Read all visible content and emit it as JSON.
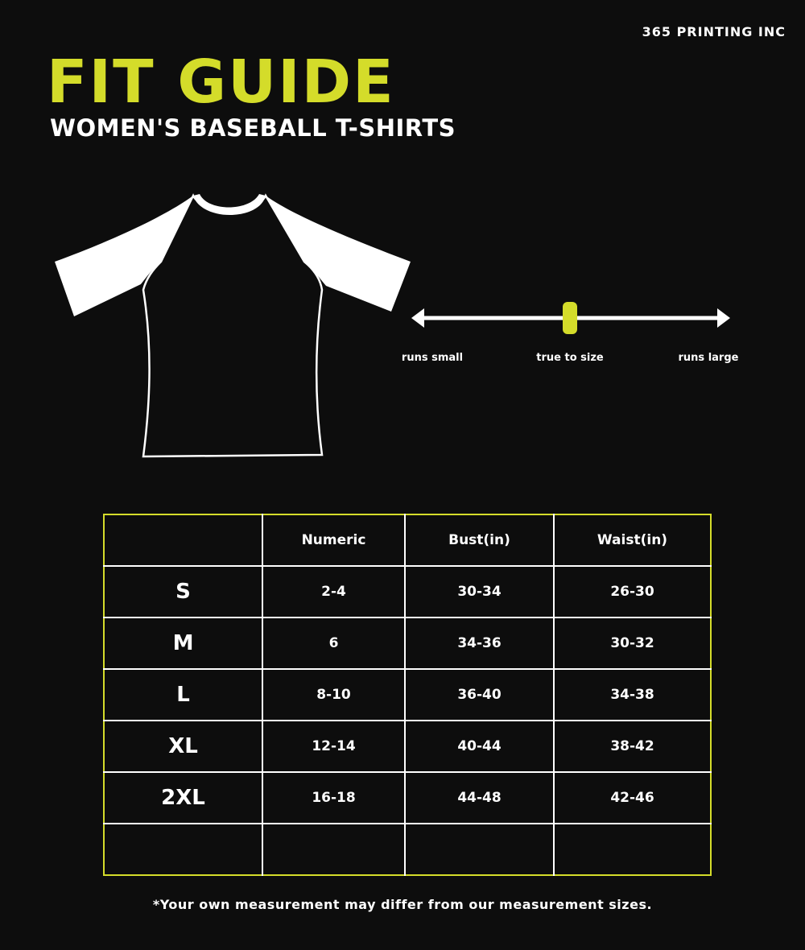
{
  "brand": "365 PRINTING INC",
  "title": "FIT GUIDE",
  "subtitle": "WOMEN'S BASEBALL T-SHIRTS",
  "fit_scale": {
    "labels": [
      "runs small",
      "true to size",
      "runs large"
    ],
    "indicator": "true to size",
    "indicator_position": 0.5,
    "accent": "#d4dc2a"
  },
  "table": {
    "headers": [
      "",
      "Numeric",
      "Bust(in)",
      "Waist(in)"
    ],
    "rows": [
      [
        "S",
        "2-4",
        "30-34",
        "26-30"
      ],
      [
        "M",
        "6",
        "34-36",
        "30-32"
      ],
      [
        "L",
        "8-10",
        "36-40",
        "34-38"
      ],
      [
        "XL",
        "12-14",
        "40-44",
        "38-42"
      ],
      [
        "2XL",
        "16-18",
        "44-48",
        "42-46"
      ],
      [
        "",
        "",
        "",
        ""
      ]
    ]
  },
  "footnote": "*Your own measurement may differ from our measurement sizes.",
  "colors": {
    "background": "#0d0d0d",
    "accent": "#d4dc2a",
    "text": "#ffffff"
  }
}
